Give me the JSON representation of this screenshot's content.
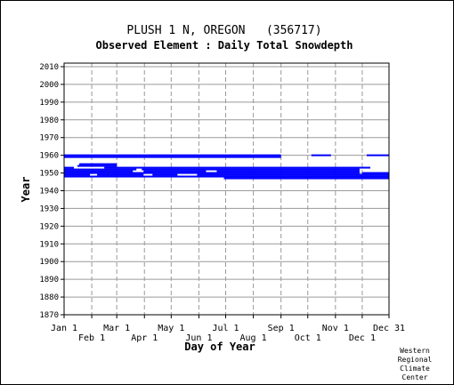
{
  "chart_data": {
    "type": "bar",
    "title": "PLUSH 1 N, OREGON   (356717)",
    "subtitle": "Observed Element : Daily Total Snowdepth",
    "xlabel": "Day of Year",
    "ylabel": "Year",
    "xlim": [
      1,
      365
    ],
    "ylim": [
      1870,
      2012
    ],
    "grid": true,
    "x_ticks": [
      {
        "label": "Jan 1",
        "day": 1,
        "row": "upper"
      },
      {
        "label": "Feb 1",
        "day": 32,
        "row": "lower"
      },
      {
        "label": "Mar 1",
        "day": 60,
        "row": "upper"
      },
      {
        "label": "Apr 1",
        "day": 91,
        "row": "lower"
      },
      {
        "label": "May 1",
        "day": 121,
        "row": "upper"
      },
      {
        "label": "Jun 1",
        "day": 152,
        "row": "lower"
      },
      {
        "label": "Jul 1",
        "day": 182,
        "row": "upper"
      },
      {
        "label": "Aug 1",
        "day": 213,
        "row": "lower"
      },
      {
        "label": "Sep 1",
        "day": 244,
        "row": "upper"
      },
      {
        "label": "Oct 1",
        "day": 274,
        "row": "lower"
      },
      {
        "label": "Nov 1",
        "day": 305,
        "row": "upper"
      },
      {
        "label": "Dec 1",
        "day": 335,
        "row": "lower"
      },
      {
        "label": "Dec 31",
        "day": 365,
        "row": "upper"
      }
    ],
    "y_ticks": [
      2010,
      2000,
      1990,
      1980,
      1970,
      1960,
      1950,
      1940,
      1930,
      1920,
      1910,
      1900,
      1890,
      1880,
      1870
    ],
    "series_color": "#0000ff",
    "segments": [
      {
        "year": 1960,
        "start": 1,
        "end": 244
      },
      {
        "year": 1960,
        "start": 278,
        "end": 300
      },
      {
        "year": 1960,
        "start": 340,
        "end": 365
      },
      {
        "year": 1959,
        "start": 1,
        "end": 244
      },
      {
        "year": 1955,
        "start": 18,
        "end": 60
      },
      {
        "year": 1954,
        "start": 16,
        "end": 60
      },
      {
        "year": 1953,
        "start": 1,
        "end": 12
      },
      {
        "year": 1953,
        "start": 46,
        "end": 344
      },
      {
        "year": 1952,
        "start": 1,
        "end": 82
      },
      {
        "year": 1952,
        "start": 88,
        "end": 332
      },
      {
        "year": 1951,
        "start": 1,
        "end": 78
      },
      {
        "year": 1951,
        "start": 90,
        "end": 160
      },
      {
        "year": 1951,
        "start": 172,
        "end": 332
      },
      {
        "year": 1950,
        "start": 1,
        "end": 332
      },
      {
        "year": 1950,
        "start": 335,
        "end": 365
      },
      {
        "year": 1949,
        "start": 1,
        "end": 30
      },
      {
        "year": 1949,
        "start": 38,
        "end": 90
      },
      {
        "year": 1949,
        "start": 100,
        "end": 128
      },
      {
        "year": 1949,
        "start": 150,
        "end": 365
      },
      {
        "year": 1948,
        "start": 1,
        "end": 365
      },
      {
        "year": 1947,
        "start": 180,
        "end": 365
      }
    ]
  },
  "credit_lines": [
    "Western",
    "Regional",
    "Climate",
    "Center"
  ]
}
